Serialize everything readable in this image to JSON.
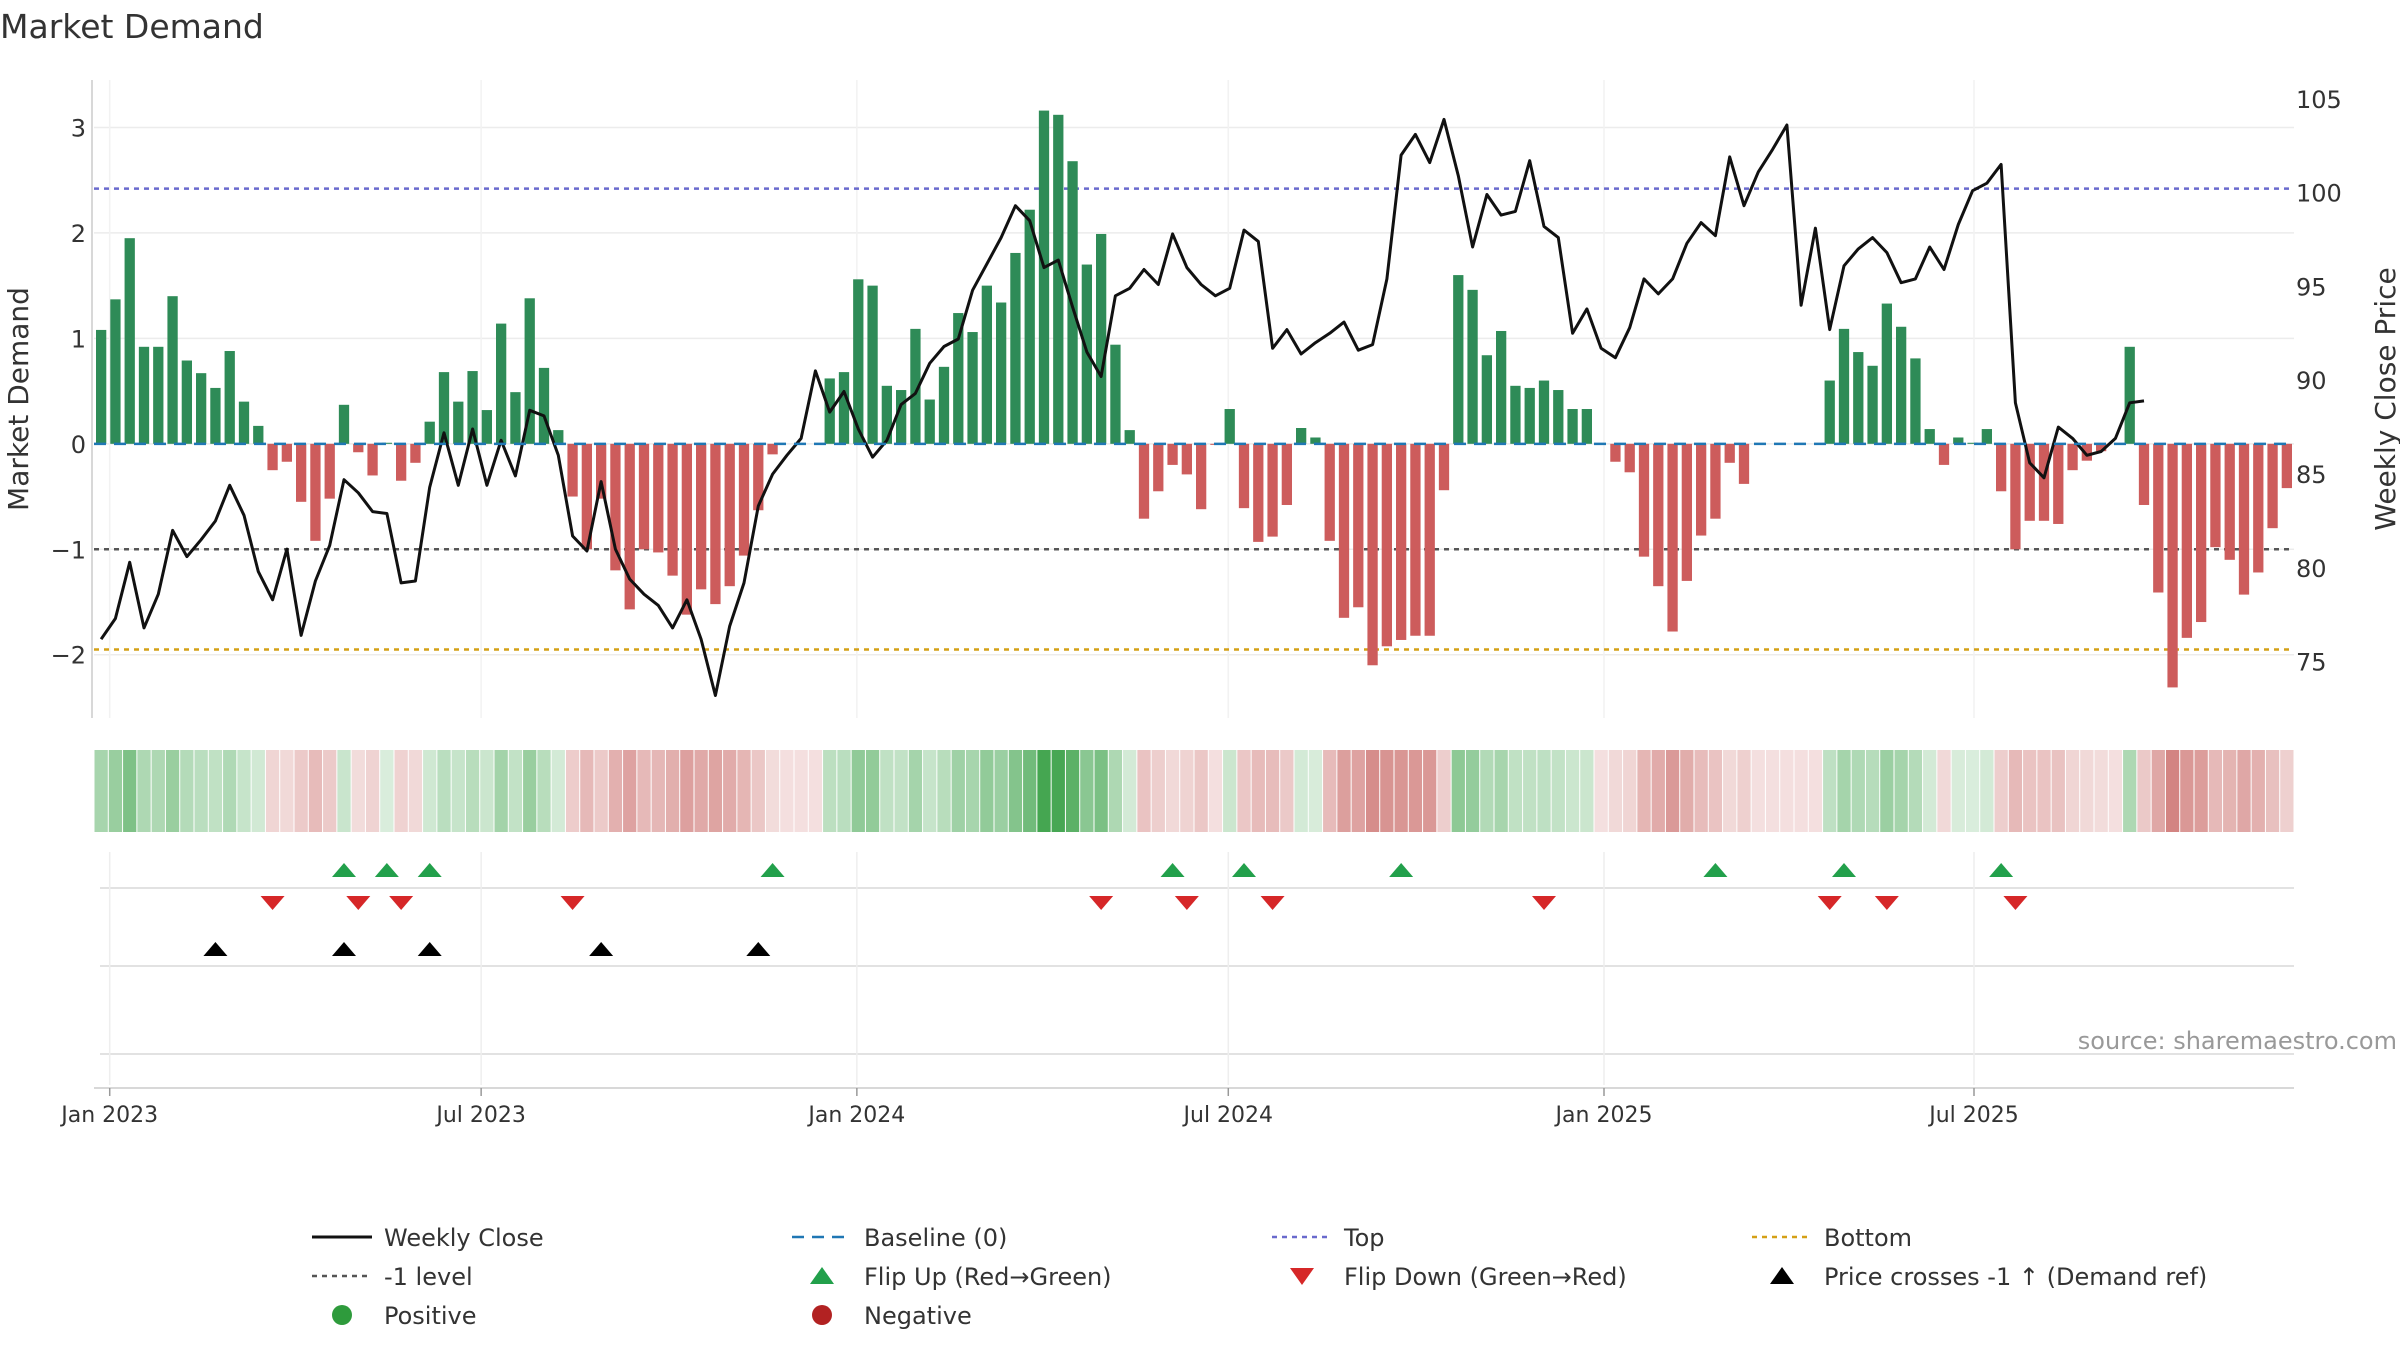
{
  "chart_data": {
    "type": "bar",
    "title": "Market Demand",
    "ylabel": "Market Demand",
    "y2label": "Weekly Close Price",
    "ylim": [
      -2.6,
      3.45
    ],
    "y2lim": [
      72,
      106
    ],
    "yticks": [
      -2,
      -1,
      0,
      1,
      2,
      3
    ],
    "yticklabels": [
      "−2",
      "−1",
      "0",
      "1",
      "2",
      "3"
    ],
    "y2ticks": [
      75,
      80,
      85,
      90,
      95,
      100,
      105
    ],
    "y2ticklabels": [
      "75",
      "80",
      "85",
      "90",
      "95",
      "100",
      "105"
    ],
    "xticklabels": [
      "Jan 2023",
      "Jul 2023",
      "Jan 2024",
      "Jul 2024",
      "Jan 2025",
      "Jul 2025"
    ],
    "xtick_week_index": [
      0.6,
      26.6,
      52.9,
      78.9,
      105.2,
      131.1
    ],
    "source": "source: sharemaestro.com",
    "reference_lines": {
      "top": 2.42,
      "bottom": -1.95,
      "minus_one": -1,
      "baseline": 0
    },
    "demand": [
      1.08,
      1.37,
      1.95,
      0.92,
      0.92,
      1.4,
      0.79,
      0.67,
      0.53,
      0.88,
      0.4,
      0.17,
      -0.25,
      -0.17,
      -0.55,
      -0.92,
      -0.52,
      0.37,
      -0.08,
      -0.3,
      0.01,
      -0.35,
      -0.18,
      0.21,
      0.68,
      0.4,
      0.69,
      0.32,
      1.14,
      0.49,
      1.38,
      0.72,
      0.13,
      -0.5,
      -1.0,
      -0.52,
      -1.2,
      -1.57,
      -1.0,
      -1.03,
      -1.25,
      -1.62,
      -1.38,
      -1.52,
      -1.35,
      -1.06,
      -0.63,
      -0.1,
      0.0,
      0.0,
      0.0,
      0.62,
      0.68,
      1.56,
      1.5,
      0.55,
      0.51,
      1.09,
      0.42,
      0.73,
      1.24,
      1.06,
      1.5,
      1.34,
      1.81,
      2.22,
      3.16,
      3.12,
      2.68,
      1.7,
      1.99,
      0.94,
      0.13,
      -0.71,
      -0.45,
      -0.2,
      -0.29,
      -0.62,
      -0.01,
      0.33,
      -0.61,
      -0.93,
      -0.88,
      -0.58,
      0.15,
      0.06,
      -0.92,
      -1.65,
      -1.55,
      -2.1,
      -1.92,
      -1.86,
      -1.82,
      -1.82,
      -0.44,
      1.6,
      1.46,
      0.84,
      1.07,
      0.55,
      0.53,
      0.6,
      0.51,
      0.33,
      0.33,
      0.0,
      -0.17,
      -0.27,
      -1.07,
      -1.35,
      -1.78,
      -1.3,
      -0.87,
      -0.71,
      -0.18,
      -0.38,
      0.0,
      0.0,
      0.0,
      0.0,
      0.0,
      0.6,
      1.09,
      0.87,
      0.74,
      1.33,
      1.11,
      0.81,
      0.14,
      -0.2,
      0.06,
      0.01,
      0.14,
      -0.45,
      -1.0,
      -0.73,
      -0.73,
      -0.76,
      -0.25,
      -0.16,
      -0.07,
      0.0,
      0.92,
      -0.58,
      -1.41,
      -2.31,
      -1.84,
      -1.69,
      -0.98,
      -1.1,
      -1.43,
      -1.22,
      -0.8,
      -0.42
    ],
    "close": [
      76.2,
      77.3,
      80.3,
      76.8,
      78.6,
      82.0,
      80.6,
      81.5,
      82.5,
      84.4,
      82.8,
      79.8,
      78.3,
      81.0,
      76.4,
      79.3,
      81.2,
      84.7,
      84.0,
      83.0,
      82.9,
      79.2,
      79.3,
      84.3,
      87.2,
      84.4,
      87.4,
      84.4,
      86.8,
      84.9,
      88.4,
      88.1,
      86.0,
      81.7,
      80.9,
      84.6,
      81.0,
      79.4,
      78.6,
      78.0,
      76.8,
      78.3,
      76.2,
      73.2,
      76.9,
      79.2,
      83.3,
      85.0,
      86.0,
      86.9,
      90.5,
      88.3,
      89.4,
      87.4,
      85.9,
      86.8,
      88.7,
      89.3,
      90.9,
      91.8,
      92.2,
      94.8,
      96.2,
      97.6,
      99.3,
      98.5,
      96.0,
      96.4,
      93.9,
      91.5,
      90.2,
      94.5,
      94.9,
      95.9,
      95.1,
      97.8,
      96.0,
      95.1,
      94.5,
      94.9,
      98.0,
      97.4,
      91.7,
      92.7,
      91.4,
      92.0,
      92.5,
      93.1,
      91.6,
      91.9,
      95.4,
      102.0,
      103.1,
      101.6,
      103.9,
      100.9,
      97.1,
      99.9,
      98.8,
      99.0,
      101.7,
      98.2,
      97.6,
      92.5,
      93.8,
      91.7,
      91.2,
      92.8,
      95.4,
      94.6,
      95.4,
      97.3,
      98.4,
      97.7,
      101.9,
      99.3,
      101.1,
      102.3,
      103.6,
      94.0,
      98.1,
      92.7,
      96.1,
      97.0,
      97.6,
      96.8,
      95.2,
      95.4,
      97.1,
      95.9,
      98.3,
      100.1,
      100.5,
      101.5,
      88.8,
      85.6,
      84.8,
      87.5,
      86.9,
      86.0,
      86.2,
      86.9,
      88.8,
      88.9
    ],
    "flip_up_weeks": [
      17,
      20,
      23,
      47,
      75,
      80,
      91,
      113,
      122,
      133
    ],
    "flip_down_weeks": [
      12,
      18,
      21,
      33,
      70,
      76,
      82,
      101,
      121,
      125,
      134
    ],
    "price_cross_weeks": [
      8,
      17,
      23,
      35,
      46
    ],
    "legend": [
      "Weekly Close",
      "Baseline (0)",
      "Top",
      "Bottom",
      "-1 level",
      "Flip Up (Red→Green)",
      "Flip Down (Green→Red)",
      "Price crosses -1 ↑ (Demand ref)",
      "Positive",
      "Negative"
    ]
  },
  "colors": {
    "positive": "#2e8b57",
    "negative": "#cd5c5c",
    "close": "#111111",
    "baseline": "#1f77b4",
    "top": "#6a6acd",
    "bottom": "#d4a017",
    "minus_one": "#555555",
    "flip_up": "#22a04b",
    "flip_down": "#d62728",
    "price_cross": "#000000",
    "legend_positive": "#2e9b3c",
    "legend_negative": "#b22222"
  }
}
